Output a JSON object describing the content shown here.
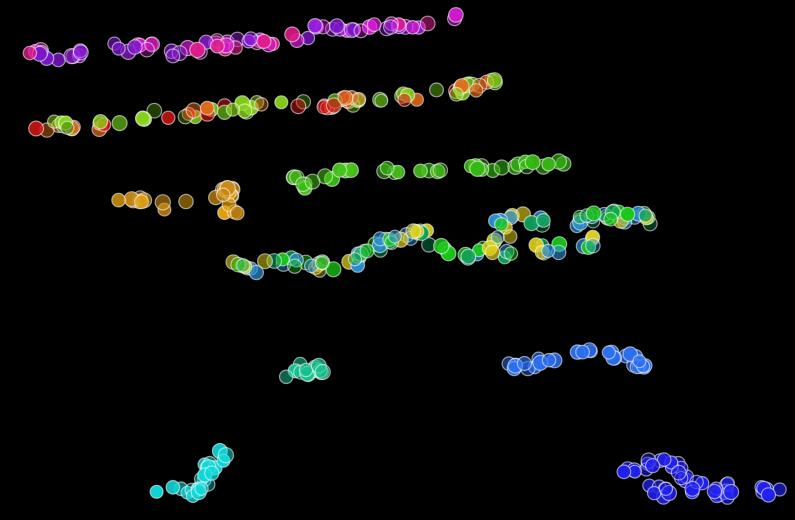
{
  "scene": {
    "description_kind": "abstract-bubble-clusters",
    "background_color": "#000000",
    "bubble_outline_color": "#ffffff",
    "clusters": [
      {
        "name": "magenta-violet-trail",
        "colors": [
          "#d21ad2",
          "#9a1ee0",
          "#7a16c8",
          "#e01c8c"
        ]
      },
      {
        "name": "orange-red-green-trail",
        "colors": [
          "#e06a1a",
          "#e01414",
          "#88d41a",
          "#4a8a10"
        ]
      },
      {
        "name": "green-trail-upper",
        "colors": [
          "#35b812",
          "#48c41a"
        ]
      },
      {
        "name": "gold-cluster",
        "colors": [
          "#e0a010",
          "#c88812"
        ]
      },
      {
        "name": "green-yellow-blue-trail",
        "colors": [
          "#1ac81a",
          "#e0d01a",
          "#2a90d4",
          "#0fa05a"
        ]
      },
      {
        "name": "teal-small-cluster",
        "colors": [
          "#18c090"
        ]
      },
      {
        "name": "blue-right-cluster",
        "colors": [
          "#2a6ef0"
        ]
      },
      {
        "name": "cyan-bottom-left",
        "colors": [
          "#10d8d8"
        ]
      },
      {
        "name": "deep-blue-bottom-right",
        "colors": [
          "#2020f0"
        ]
      }
    ]
  }
}
